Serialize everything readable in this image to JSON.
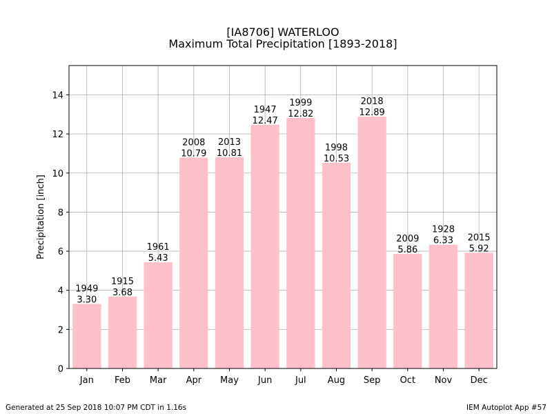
{
  "chart_data": {
    "type": "bar",
    "title": "[IA8706] WATERLOO",
    "subtitle": "Maximum Total Precipitation [1893-2018]",
    "xlabel": "",
    "ylabel": "Precipitation [inch]",
    "ylim": [
      0,
      15.5
    ],
    "yticks": [
      0,
      2,
      4,
      6,
      8,
      10,
      12,
      14
    ],
    "grid": true,
    "bar_color": "#ffc0cb",
    "categories": [
      "Jan",
      "Feb",
      "Mar",
      "Apr",
      "May",
      "Jun",
      "Jul",
      "Aug",
      "Sep",
      "Oct",
      "Nov",
      "Dec"
    ],
    "values": [
      3.3,
      3.68,
      5.43,
      10.79,
      10.81,
      12.47,
      12.82,
      10.53,
      12.89,
      5.86,
      6.33,
      5.92
    ],
    "value_labels": [
      "3.30",
      "3.68",
      "5.43",
      "10.79",
      "10.81",
      "12.47",
      "12.82",
      "10.53",
      "12.89",
      "5.86",
      "6.33",
      "5.92"
    ],
    "years": [
      "1949",
      "1915",
      "1961",
      "2008",
      "2013",
      "1947",
      "1999",
      "1998",
      "2018",
      "2009",
      "1928",
      "2015"
    ]
  },
  "footer": {
    "generated": "Generated at 25 Sep 2018 10:07 PM CDT in 1.16s",
    "app": "IEM Autoplot App #57"
  }
}
